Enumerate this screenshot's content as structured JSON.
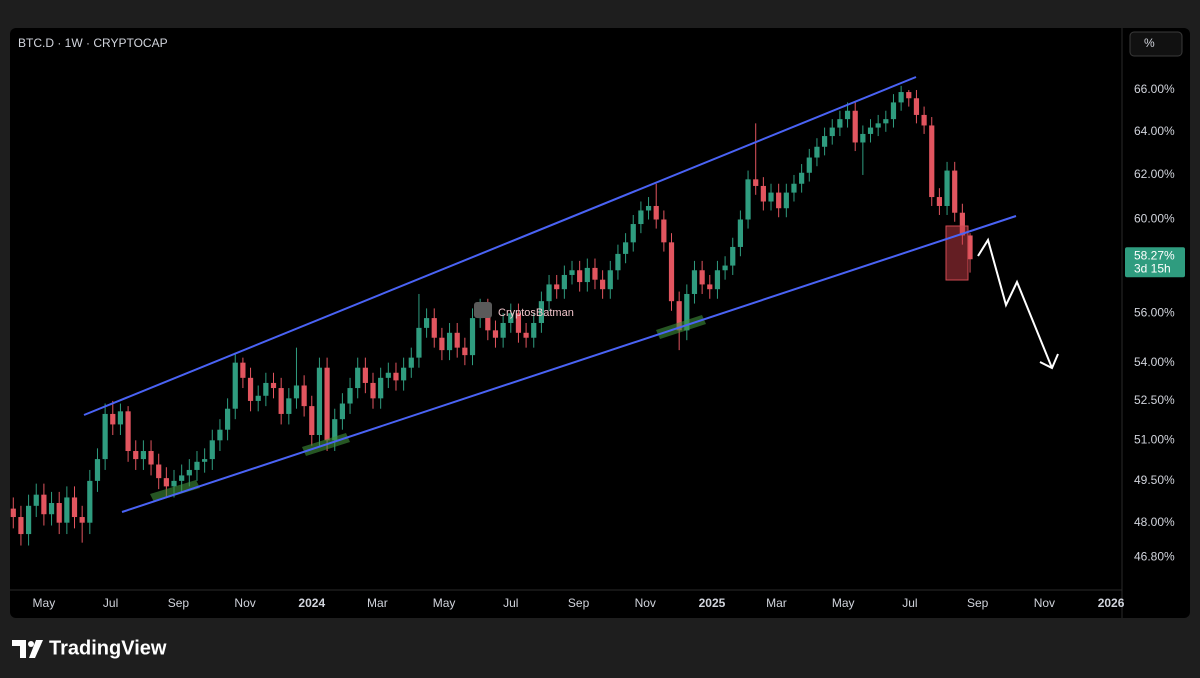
{
  "chart_data": {
    "type": "candlestick",
    "title": "BTC.D · 1W · CRYPTOCAP",
    "scale_button": "%",
    "watermark": "CryptosBatman",
    "brand": "TradingView",
    "up_color": "#2f9c7f",
    "down_color": "#e2555f",
    "log_scale": true,
    "grid": false,
    "ylim": [
      45.68,
      68.98
    ],
    "yticks": [
      {
        "value": 66,
        "label": "66.00%"
      },
      {
        "value": 64,
        "label": "64.00%"
      },
      {
        "value": 62,
        "label": "62.00%"
      },
      {
        "value": 60,
        "label": "60.00%"
      },
      {
        "value": 56,
        "label": "56.00%"
      },
      {
        "value": 54,
        "label": "54.00%"
      },
      {
        "value": 52.5,
        "label": "52.50%"
      },
      {
        "value": 51,
        "label": "51.00%"
      },
      {
        "value": 49.5,
        "label": "49.50%"
      },
      {
        "value": 48,
        "label": "48.00%"
      },
      {
        "value": 46.8,
        "label": "46.80%"
      }
    ],
    "xlim": [
      "2023-03-31",
      "2026-01-11"
    ],
    "xticks": [
      {
        "value": "2023-05-01",
        "label": "May"
      },
      {
        "value": "2023-07-01",
        "label": "Jul"
      },
      {
        "value": "2023-09-01",
        "label": "Sep"
      },
      {
        "value": "2023-11-01",
        "label": "Nov"
      },
      {
        "value": "2024-01-01",
        "label": "2024"
      },
      {
        "value": "2024-03-01",
        "label": "Mar"
      },
      {
        "value": "2024-05-01",
        "label": "May"
      },
      {
        "value": "2024-07-01",
        "label": "Jul"
      },
      {
        "value": "2024-09-01",
        "label": "Sep"
      },
      {
        "value": "2024-11-01",
        "label": "Nov"
      },
      {
        "value": "2025-01-01",
        "label": "2025"
      },
      {
        "value": "2025-03-01",
        "label": "Mar"
      },
      {
        "value": "2025-05-01",
        "label": "May"
      },
      {
        "value": "2025-07-01",
        "label": "Jul"
      },
      {
        "value": "2025-09-01",
        "label": "Sep"
      },
      {
        "value": "2025-11-01",
        "label": "Nov"
      },
      {
        "value": "2026-01-01",
        "label": "2026"
      }
    ],
    "last_price": {
      "value": 58.27,
      "label": "58.27%",
      "countdown": "3d 15h"
    },
    "x": [
      "2023-04-03",
      "2023-04-10",
      "2023-04-17",
      "2023-04-24",
      "2023-05-01",
      "2023-05-08",
      "2023-05-15",
      "2023-05-22",
      "2023-05-29",
      "2023-06-05",
      "2023-06-12",
      "2023-06-19",
      "2023-06-26",
      "2023-07-03",
      "2023-07-10",
      "2023-07-17",
      "2023-07-24",
      "2023-07-31",
      "2023-08-07",
      "2023-08-14",
      "2023-08-21",
      "2023-08-28",
      "2023-09-04",
      "2023-09-11",
      "2023-09-18",
      "2023-09-25",
      "2023-10-02",
      "2023-10-09",
      "2023-10-16",
      "2023-10-23",
      "2023-10-30",
      "2023-11-06",
      "2023-11-13",
      "2023-11-20",
      "2023-11-27",
      "2023-12-04",
      "2023-12-11",
      "2023-12-18",
      "2023-12-25",
      "2024-01-01",
      "2024-01-08",
      "2024-01-15",
      "2024-01-22",
      "2024-01-29",
      "2024-02-05",
      "2024-02-12",
      "2024-02-19",
      "2024-02-26",
      "2024-03-04",
      "2024-03-11",
      "2024-03-18",
      "2024-03-25",
      "2024-04-01",
      "2024-04-08",
      "2024-04-15",
      "2024-04-22",
      "2024-04-29",
      "2024-05-06",
      "2024-05-13",
      "2024-05-20",
      "2024-05-27",
      "2024-06-03",
      "2024-06-10",
      "2024-06-17",
      "2024-06-24",
      "2024-07-01",
      "2024-07-08",
      "2024-07-15",
      "2024-07-22",
      "2024-07-29",
      "2024-08-05",
      "2024-08-12",
      "2024-08-19",
      "2024-08-26",
      "2024-09-02",
      "2024-09-09",
      "2024-09-16",
      "2024-09-23",
      "2024-09-30",
      "2024-10-07",
      "2024-10-14",
      "2024-10-21",
      "2024-10-28",
      "2024-11-04",
      "2024-11-11",
      "2024-11-18",
      "2024-11-25",
      "2024-12-02",
      "2024-12-09",
      "2024-12-16",
      "2024-12-23",
      "2024-12-30",
      "2025-01-06",
      "2025-01-13",
      "2025-01-20",
      "2025-01-27",
      "2025-02-03",
      "2025-02-10",
      "2025-02-17",
      "2025-02-24",
      "2025-03-03",
      "2025-03-10",
      "2025-03-17",
      "2025-03-24",
      "2025-03-31",
      "2025-04-07",
      "2025-04-14",
      "2025-04-21",
      "2025-04-28",
      "2025-05-05",
      "2025-05-12",
      "2025-05-19",
      "2025-05-26",
      "2025-06-02",
      "2025-06-09",
      "2025-06-16",
      "2025-06-23",
      "2025-06-30",
      "2025-07-07",
      "2025-07-14",
      "2025-07-21",
      "2025-07-28",
      "2025-08-04",
      "2025-08-11",
      "2025-08-18",
      "2025-08-25"
    ],
    "open": [
      48.5,
      48.2,
      47.6,
      48.6,
      49.0,
      48.3,
      48.7,
      48.0,
      48.9,
      48.2,
      48.0,
      49.5,
      50.3,
      52.0,
      51.6,
      52.1,
      50.6,
      50.3,
      50.6,
      50.1,
      49.6,
      49.3,
      49.5,
      49.7,
      49.9,
      50.2,
      50.3,
      51.0,
      51.4,
      52.2,
      54.0,
      53.4,
      52.5,
      52.7,
      53.2,
      53.0,
      52.0,
      52.6,
      53.1,
      52.3,
      51.2,
      53.8,
      51.0,
      51.8,
      52.4,
      53.0,
      53.8,
      53.2,
      52.6,
      53.4,
      53.6,
      53.3,
      53.8,
      54.2,
      55.4,
      55.8,
      55.0,
      54.5,
      55.2,
      54.6,
      54.3,
      55.8,
      56.2,
      55.3,
      55.0,
      55.6,
      56.0,
      55.2,
      55.0,
      55.6,
      56.5,
      57.2,
      57.0,
      57.6,
      57.8,
      57.3,
      57.9,
      57.4,
      57.0,
      57.8,
      58.5,
      59.0,
      59.8,
      60.4,
      60.6,
      60.0,
      59.0,
      56.5,
      55.3,
      56.8,
      57.8,
      57.2,
      57.0,
      57.8,
      58.0,
      58.8,
      60.0,
      61.8,
      61.5,
      60.8,
      61.2,
      60.5,
      61.2,
      61.6,
      62.1,
      62.8,
      63.3,
      63.8,
      64.2,
      64.6,
      65.0,
      63.5,
      63.9,
      64.2,
      64.4,
      64.6,
      65.4,
      65.9,
      65.6,
      64.8,
      64.3,
      61.0,
      60.6,
      62.2,
      60.3,
      59.3
    ],
    "high": [
      48.9,
      48.6,
      49.0,
      49.4,
      49.4,
      49.1,
      49.1,
      49.3,
      49.3,
      48.6,
      49.9,
      50.7,
      52.4,
      52.5,
      52.4,
      52.3,
      51.0,
      51.0,
      51.0,
      50.5,
      50.0,
      49.9,
      50.1,
      50.3,
      50.6,
      50.7,
      51.4,
      51.8,
      52.6,
      54.4,
      54.2,
      53.8,
      53.1,
      53.6,
      53.6,
      53.4,
      53.0,
      54.6,
      53.5,
      52.7,
      54.2,
      54.2,
      52.2,
      52.8,
      53.4,
      54.2,
      54.2,
      53.6,
      53.8,
      54.0,
      54.0,
      54.2,
      54.6,
      56.8,
      56.2,
      56.2,
      55.4,
      55.6,
      55.6,
      55.0,
      56.2,
      56.6,
      56.6,
      55.7,
      56.0,
      56.4,
      56.4,
      55.6,
      56.0,
      56.9,
      57.6,
      57.6,
      58.0,
      58.2,
      58.2,
      58.3,
      58.3,
      57.8,
      58.2,
      58.9,
      59.4,
      60.2,
      60.8,
      61.0,
      61.6,
      60.4,
      59.4,
      56.9,
      57.2,
      58.2,
      58.2,
      57.6,
      58.2,
      58.4,
      59.2,
      60.4,
      62.2,
      64.4,
      61.9,
      61.6,
      61.6,
      61.6,
      62.0,
      62.5,
      63.2,
      63.7,
      64.2,
      64.6,
      65.0,
      65.4,
      65.4,
      64.3,
      64.6,
      64.8,
      65.0,
      65.8,
      66.2,
      66.0,
      66.0,
      65.2,
      64.7,
      61.4,
      62.6,
      62.6,
      60.7,
      59.4
    ],
    "low": [
      47.8,
      47.2,
      47.2,
      48.2,
      47.9,
      47.9,
      47.6,
      47.6,
      47.8,
      47.3,
      47.6,
      49.1,
      49.9,
      51.2,
      51.2,
      50.2,
      49.9,
      49.9,
      49.7,
      49.2,
      48.9,
      48.9,
      49.1,
      49.3,
      49.5,
      49.8,
      49.9,
      50.6,
      51.0,
      51.8,
      53.0,
      52.1,
      52.1,
      52.3,
      52.6,
      51.6,
      51.6,
      52.2,
      51.9,
      50.8,
      50.8,
      50.6,
      50.6,
      51.4,
      52.0,
      52.6,
      52.8,
      52.2,
      52.2,
      53.0,
      52.9,
      52.9,
      53.4,
      53.8,
      55.0,
      54.6,
      54.1,
      54.1,
      54.2,
      53.9,
      53.9,
      55.4,
      54.9,
      54.6,
      54.6,
      55.2,
      54.8,
      54.6,
      54.6,
      55.2,
      56.1,
      56.6,
      56.6,
      57.2,
      56.9,
      56.9,
      57.0,
      56.6,
      56.6,
      57.4,
      58.1,
      58.6,
      59.4,
      60.0,
      59.6,
      58.6,
      56.1,
      54.5,
      54.9,
      56.4,
      56.8,
      56.6,
      56.6,
      57.4,
      57.6,
      58.4,
      59.6,
      61.1,
      60.4,
      60.4,
      60.1,
      60.1,
      60.8,
      61.2,
      61.7,
      62.4,
      62.9,
      63.4,
      63.8,
      64.2,
      63.1,
      62.0,
      63.5,
      63.8,
      64.0,
      64.2,
      65.0,
      65.2,
      64.4,
      63.9,
      60.6,
      60.2,
      60.2,
      59.9,
      58.9,
      57.7
    ],
    "close": [
      48.2,
      47.6,
      48.6,
      49.0,
      48.3,
      48.7,
      48.0,
      48.9,
      48.2,
      48.0,
      49.5,
      50.3,
      52.0,
      51.6,
      52.1,
      50.6,
      50.3,
      50.6,
      50.1,
      49.6,
      49.3,
      49.5,
      49.7,
      49.9,
      50.2,
      50.3,
      51.0,
      51.4,
      52.2,
      54.0,
      53.4,
      52.5,
      52.7,
      53.2,
      53.0,
      52.0,
      52.6,
      53.1,
      52.3,
      51.2,
      53.8,
      51.0,
      51.8,
      52.4,
      53.0,
      53.8,
      53.2,
      52.6,
      53.4,
      53.6,
      53.3,
      53.8,
      54.2,
      55.4,
      55.8,
      55.0,
      54.5,
      55.2,
      54.6,
      54.3,
      55.8,
      56.2,
      55.3,
      55.0,
      55.6,
      56.0,
      55.2,
      55.0,
      55.6,
      56.5,
      57.2,
      57.0,
      57.6,
      57.8,
      57.3,
      57.9,
      57.4,
      57.0,
      57.8,
      58.5,
      59.0,
      59.8,
      60.4,
      60.6,
      60.0,
      59.0,
      56.5,
      55.3,
      56.8,
      57.8,
      57.2,
      57.0,
      57.8,
      58.0,
      58.8,
      60.0,
      61.8,
      61.5,
      60.8,
      61.2,
      60.5,
      61.2,
      61.6,
      62.1,
      62.8,
      63.3,
      63.8,
      64.2,
      64.6,
      65.0,
      63.5,
      63.9,
      64.2,
      64.4,
      64.6,
      65.4,
      65.9,
      65.6,
      64.8,
      64.3,
      61.0,
      60.6,
      62.2,
      60.3,
      59.3,
      58.27
    ]
  }
}
